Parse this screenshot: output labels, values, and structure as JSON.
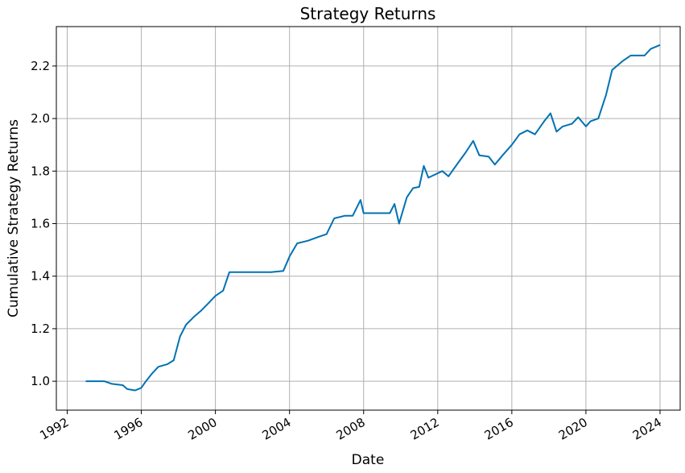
{
  "chart_data": {
    "type": "line",
    "title": "Strategy Returns",
    "xlabel": "Date",
    "ylabel": "Cumulative Strategy Returns",
    "x_scale": "date",
    "xlim": [
      "1991-06-01",
      "2025-02-01"
    ],
    "ylim": [
      0.89,
      2.35
    ],
    "x_ticks": [
      "1992",
      "1996",
      "2000",
      "2004",
      "2008",
      "2012",
      "2016",
      "2020",
      "2024"
    ],
    "y_ticks": [
      "1.0",
      "1.2",
      "1.4",
      "1.6",
      "1.8",
      "2.0",
      "2.2"
    ],
    "grid": true,
    "legend": "none",
    "colors": {
      "series": "#0072b2"
    },
    "series": [
      {
        "values": [
          [
            "1993-01-01",
            1.0
          ],
          [
            "1994-01-01",
            1.0
          ],
          [
            "1994-06-01",
            0.99
          ],
          [
            "1995-01-01",
            0.985
          ],
          [
            "1995-04-01",
            0.97
          ],
          [
            "1995-09-01",
            0.965
          ],
          [
            "1996-01-01",
            0.975
          ],
          [
            "1996-04-01",
            1.0
          ],
          [
            "1996-08-01",
            1.03
          ],
          [
            "1996-12-01",
            1.055
          ],
          [
            "1997-06-01",
            1.065
          ],
          [
            "1997-10-01",
            1.08
          ],
          [
            "1998-02-01",
            1.17
          ],
          [
            "1998-06-01",
            1.215
          ],
          [
            "1998-11-01",
            1.245
          ],
          [
            "1999-04-01",
            1.27
          ],
          [
            "1999-09-01",
            1.3
          ],
          [
            "2000-01-01",
            1.325
          ],
          [
            "2000-06-01",
            1.345
          ],
          [
            "2000-10-01",
            1.415
          ],
          [
            "2003-01-01",
            1.415
          ],
          [
            "2003-09-01",
            1.42
          ],
          [
            "2004-01-01",
            1.475
          ],
          [
            "2004-06-01",
            1.525
          ],
          [
            "2005-01-01",
            1.535
          ],
          [
            "2005-08-01",
            1.55
          ],
          [
            "2006-01-01",
            1.56
          ],
          [
            "2006-06-01",
            1.62
          ],
          [
            "2007-01-01",
            1.63
          ],
          [
            "2007-06-01",
            1.63
          ],
          [
            "2007-11-01",
            1.69
          ],
          [
            "2008-01-01",
            1.64
          ],
          [
            "2009-06-01",
            1.64
          ],
          [
            "2009-09-01",
            1.675
          ],
          [
            "2009-12-01",
            1.6
          ],
          [
            "2010-05-01",
            1.7
          ],
          [
            "2010-09-01",
            1.735
          ],
          [
            "2011-01-01",
            1.74
          ],
          [
            "2011-04-01",
            1.82
          ],
          [
            "2011-07-01",
            1.775
          ],
          [
            "2012-04-01",
            1.8
          ],
          [
            "2012-08-01",
            1.78
          ],
          [
            "2013-02-01",
            1.83
          ],
          [
            "2013-07-01",
            1.87
          ],
          [
            "2013-12-01",
            1.915
          ],
          [
            "2014-04-01",
            1.86
          ],
          [
            "2014-10-01",
            1.855
          ],
          [
            "2015-02-01",
            1.825
          ],
          [
            "2015-07-01",
            1.86
          ],
          [
            "2016-01-01",
            1.9
          ],
          [
            "2016-06-01",
            1.94
          ],
          [
            "2016-11-01",
            1.955
          ],
          [
            "2017-04-01",
            1.94
          ],
          [
            "2017-10-01",
            1.99
          ],
          [
            "2018-02-01",
            2.02
          ],
          [
            "2018-06-01",
            1.95
          ],
          [
            "2018-10-01",
            1.97
          ],
          [
            "2019-04-01",
            1.98
          ],
          [
            "2019-08-01",
            2.005
          ],
          [
            "2020-01-01",
            1.97
          ],
          [
            "2020-04-01",
            1.99
          ],
          [
            "2020-09-01",
            2.0
          ],
          [
            "2021-02-01",
            2.09
          ],
          [
            "2021-06-01",
            2.185
          ],
          [
            "2022-01-01",
            2.22
          ],
          [
            "2022-06-01",
            2.24
          ],
          [
            "2023-03-01",
            2.24
          ],
          [
            "2023-07-01",
            2.265
          ],
          [
            "2024-01-01",
            2.28
          ]
        ]
      }
    ]
  }
}
